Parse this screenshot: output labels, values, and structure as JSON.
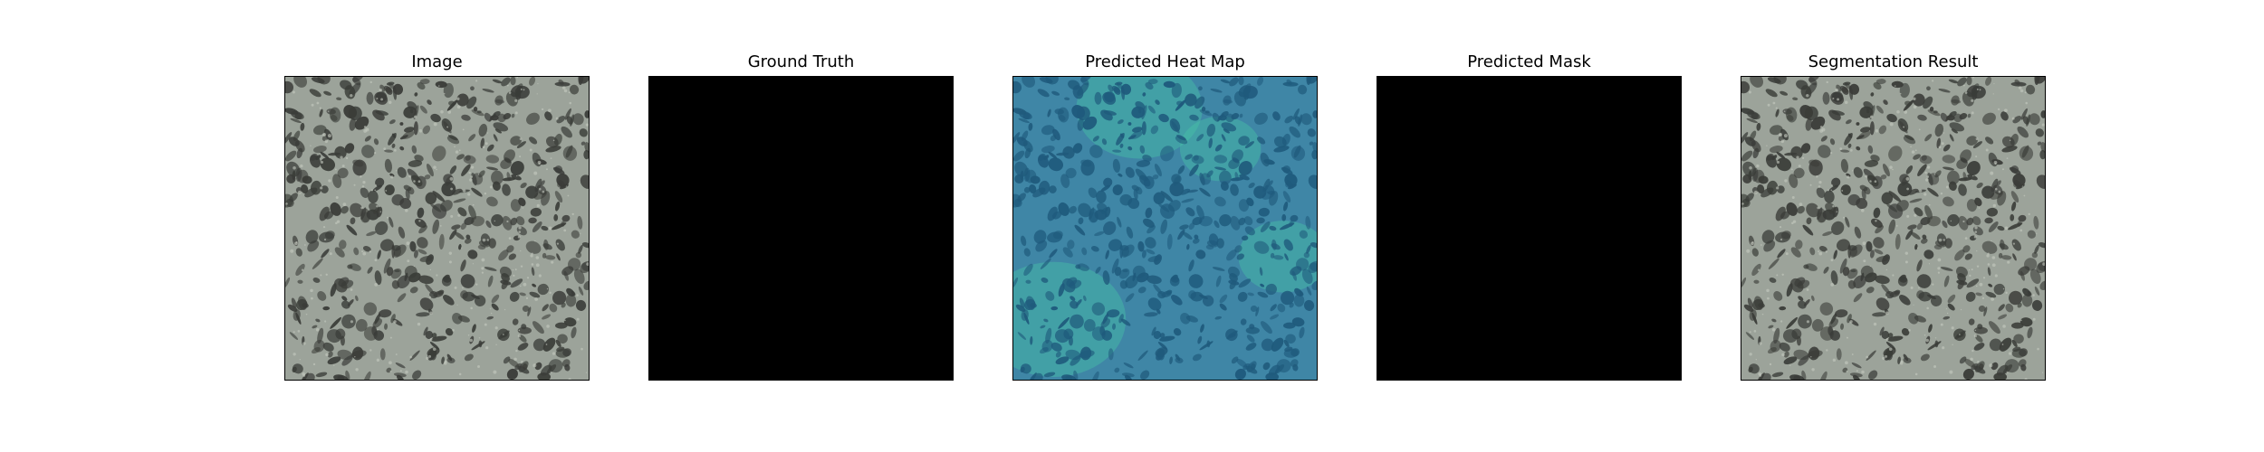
{
  "panels": [
    {
      "title": "Image",
      "kind": "texture"
    },
    {
      "title": "Ground Truth",
      "kind": "mask"
    },
    {
      "title": "Predicted Heat Map",
      "kind": "heatmap"
    },
    {
      "title": "Predicted Mask",
      "kind": "mask"
    },
    {
      "title": "Segmentation Result",
      "kind": "texture"
    }
  ],
  "colors": {
    "texture_base": "#9ca39a",
    "texture_spot": "#3a3c38",
    "mask_fill": "#000000",
    "heat_base": "#3f86a6",
    "heat_hot": "#48c0a6",
    "heat_spot": "#1f5a7c"
  }
}
